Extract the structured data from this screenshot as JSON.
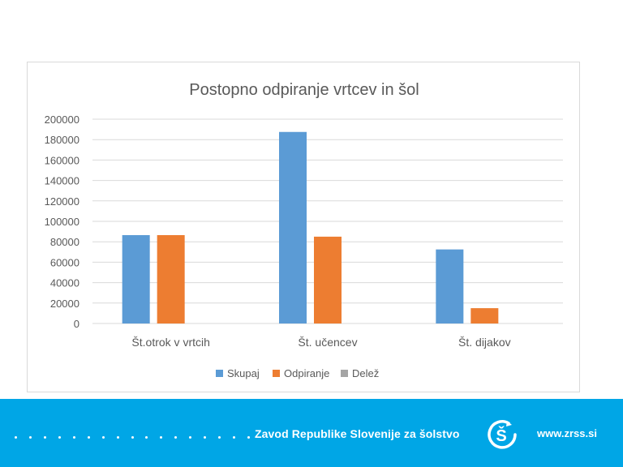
{
  "chart_data": {
    "type": "bar",
    "title": "Postopno odpiranje vrtcev in šol",
    "categories": [
      "Št.otrok v vrtcih",
      "Št. učencev",
      "Št. dijakov"
    ],
    "series": [
      {
        "name": "Skupaj",
        "color": "#5b9bd5",
        "values": [
          86500,
          187500,
          72500
        ]
      },
      {
        "name": "Odpiranje",
        "color": "#ed7d31",
        "values": [
          86500,
          85000,
          15000
        ]
      },
      {
        "name": "Delež",
        "color": "#a5a5a5",
        "values": [
          0,
          0,
          0
        ]
      }
    ],
    "ylim": [
      0,
      200000
    ],
    "yticks": [
      0,
      20000,
      40000,
      60000,
      80000,
      100000,
      120000,
      140000,
      160000,
      180000,
      200000
    ],
    "xlabel": "",
    "ylabel": "",
    "grid": true,
    "legend": "bottom"
  },
  "footer": {
    "organization": "Zavod Republike Slovenije za šolstvo",
    "logo_letter": "Š",
    "website": "www.zrss.si",
    "colors": {
      "background": "#00a6e6",
      "text": "#ffffff"
    }
  }
}
